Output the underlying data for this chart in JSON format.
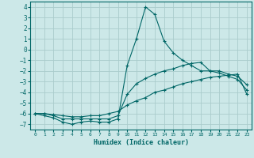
{
  "title": "",
  "xlabel": "Humidex (Indice chaleur)",
  "bg_color": "#cce8e8",
  "grid_color": "#aacccc",
  "line_color": "#006666",
  "xlim": [
    -0.5,
    23.5
  ],
  "ylim": [
    -7.5,
    4.5
  ],
  "xticks": [
    0,
    1,
    2,
    3,
    4,
    5,
    6,
    7,
    8,
    9,
    10,
    11,
    12,
    13,
    14,
    15,
    16,
    17,
    18,
    19,
    20,
    21,
    22,
    23
  ],
  "yticks": [
    -7,
    -6,
    -5,
    -4,
    -3,
    -2,
    -1,
    0,
    1,
    2,
    3,
    4
  ],
  "line1_x": [
    0,
    1,
    2,
    3,
    4,
    5,
    6,
    7,
    8,
    9,
    10,
    11,
    12,
    13,
    14,
    15,
    16,
    17,
    18,
    19,
    20,
    21,
    22,
    23
  ],
  "line1_y": [
    -6.0,
    -6.2,
    -6.4,
    -6.8,
    -7.0,
    -6.8,
    -6.7,
    -6.8,
    -6.8,
    -6.5,
    -1.5,
    1.0,
    4.0,
    3.3,
    0.8,
    -0.3,
    -1.0,
    -1.5,
    -2.0,
    -2.0,
    -2.2,
    -2.5,
    -2.8,
    -3.8
  ],
  "line2_x": [
    0,
    1,
    2,
    3,
    4,
    5,
    6,
    7,
    8,
    9,
    10,
    11,
    12,
    13,
    14,
    15,
    16,
    17,
    18,
    19,
    20,
    21,
    22,
    23
  ],
  "line2_y": [
    -6.0,
    -6.0,
    -6.2,
    -6.5,
    -6.5,
    -6.5,
    -6.5,
    -6.5,
    -6.5,
    -6.2,
    -4.2,
    -3.2,
    -2.7,
    -2.3,
    -2.0,
    -1.8,
    -1.5,
    -1.3,
    -1.2,
    -2.0,
    -2.0,
    -2.3,
    -2.5,
    -3.3
  ],
  "line3_x": [
    0,
    1,
    2,
    3,
    4,
    5,
    6,
    7,
    8,
    9,
    10,
    11,
    12,
    13,
    14,
    15,
    16,
    17,
    18,
    19,
    20,
    21,
    22,
    23
  ],
  "line3_y": [
    -6.0,
    -6.0,
    -6.1,
    -6.2,
    -6.3,
    -6.3,
    -6.2,
    -6.2,
    -6.0,
    -5.8,
    -5.2,
    -4.8,
    -4.5,
    -4.0,
    -3.8,
    -3.5,
    -3.2,
    -3.0,
    -2.8,
    -2.6,
    -2.5,
    -2.4,
    -2.3,
    -4.2
  ]
}
